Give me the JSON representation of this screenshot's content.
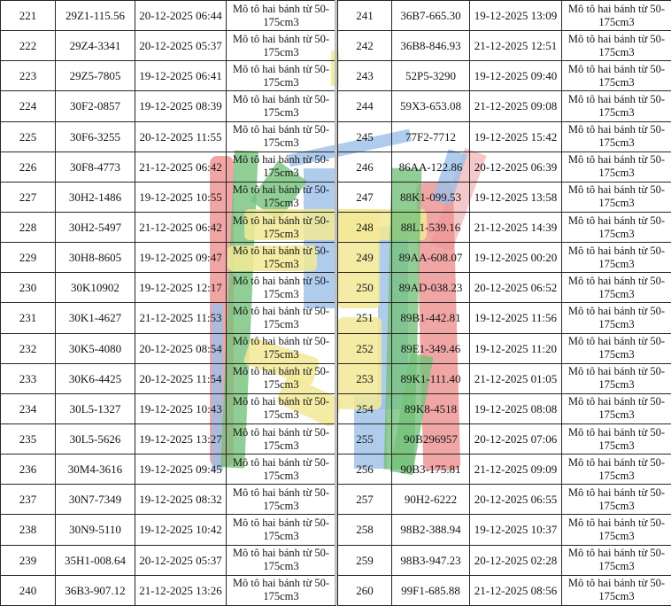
{
  "table": {
    "vehicle_type": "Mô tô hai bánh từ 50-175cm3",
    "vehicle_type_lines": [
      "Mô tô hai bánh từ 50-",
      "175cm3"
    ],
    "left_rows": [
      {
        "no": "221",
        "plate": "29Z1-115.56",
        "datetime": "20-12-2025 06:44"
      },
      {
        "no": "222",
        "plate": "29Z4-3341",
        "datetime": "20-12-2025 05:37"
      },
      {
        "no": "223",
        "plate": "29Z5-7805",
        "datetime": "19-12-2025 06:41"
      },
      {
        "no": "224",
        "plate": "30F2-0857",
        "datetime": "19-12-2025 08:39"
      },
      {
        "no": "225",
        "plate": "30F6-3255",
        "datetime": "20-12-2025 11:55"
      },
      {
        "no": "226",
        "plate": "30F8-4773",
        "datetime": "21-12-2025 06:42"
      },
      {
        "no": "227",
        "plate": "30H2-1486",
        "datetime": "19-12-2025 10:55"
      },
      {
        "no": "228",
        "plate": "30H2-5497",
        "datetime": "21-12-2025 06:42"
      },
      {
        "no": "229",
        "plate": "30H8-8605",
        "datetime": "19-12-2025 09:47"
      },
      {
        "no": "230",
        "plate": "30K10902",
        "datetime": "19-12-2025 12:17"
      },
      {
        "no": "231",
        "plate": "30K1-4627",
        "datetime": "21-12-2025 11:53"
      },
      {
        "no": "232",
        "plate": "30K5-4080",
        "datetime": "20-12-2025 08:54"
      },
      {
        "no": "233",
        "plate": "30K6-4425",
        "datetime": "20-12-2025 11:54"
      },
      {
        "no": "234",
        "plate": "30L5-1327",
        "datetime": "19-12-2025 10:43"
      },
      {
        "no": "235",
        "plate": "30L5-5626",
        "datetime": "19-12-2025 13:27"
      },
      {
        "no": "236",
        "plate": "30M4-3616",
        "datetime": "19-12-2025 09:45"
      },
      {
        "no": "237",
        "plate": "30N7-7349",
        "datetime": "19-12-2025 08:32"
      },
      {
        "no": "238",
        "plate": "30N9-5110",
        "datetime": "19-12-2025 10:42"
      },
      {
        "no": "239",
        "plate": "35H1-008.64",
        "datetime": "20-12-2025 05:37"
      },
      {
        "no": "240",
        "plate": "36B3-907.12",
        "datetime": "21-12-2025 13:26"
      }
    ],
    "right_rows": [
      {
        "no": "241",
        "plate": "36B7-665.30",
        "datetime": "19-12-2025 13:09"
      },
      {
        "no": "242",
        "plate": "36B8-846.93",
        "datetime": "21-12-2025 12:51"
      },
      {
        "no": "243",
        "plate": "52P5-3290",
        "datetime": "19-12-2025 09:40"
      },
      {
        "no": "244",
        "plate": "59X3-653.08",
        "datetime": "21-12-2025 09:08"
      },
      {
        "no": "245",
        "plate": "77F2-7712",
        "datetime": "19-12-2025 15:42"
      },
      {
        "no": "246",
        "plate": "86AA-122.86",
        "datetime": "20-12-2025 06:39"
      },
      {
        "no": "247",
        "plate": "88K1-099.53",
        "datetime": "19-12-2025 13:58"
      },
      {
        "no": "248",
        "plate": "88L1-539.16",
        "datetime": "21-12-2025 14:39"
      },
      {
        "no": "249",
        "plate": "89AA-608.07",
        "datetime": "19-12-2025 00:20"
      },
      {
        "no": "250",
        "plate": "89AD-038.23",
        "datetime": "20-12-2025 06:52"
      },
      {
        "no": "251",
        "plate": "89B1-442.81",
        "datetime": "19-12-2025 11:56"
      },
      {
        "no": "252",
        "plate": "89E1-349.46",
        "datetime": "19-12-2025 11:20"
      },
      {
        "no": "253",
        "plate": "89K1-111.40",
        "datetime": "21-12-2025 01:05"
      },
      {
        "no": "254",
        "plate": "89K8-4518",
        "datetime": "19-12-2025 08:08"
      },
      {
        "no": "255",
        "plate": "90B296957",
        "datetime": "20-12-2025 07:06"
      },
      {
        "no": "256",
        "plate": "90B3-175.81",
        "datetime": "21-12-2025 09:09"
      },
      {
        "no": "257",
        "plate": "90H2-6222",
        "datetime": "20-12-2025 06:55"
      },
      {
        "no": "258",
        "plate": "98B2-388.94",
        "datetime": "19-12-2025 10:37"
      },
      {
        "no": "259",
        "plate": "98B3-947.23",
        "datetime": "20-12-2025 02:28"
      },
      {
        "no": "260",
        "plate": "99F1-685.88",
        "datetime": "21-12-2025 08:56"
      }
    ]
  },
  "watermark": {
    "colors": {
      "red": "#ee9090",
      "pink": "#f3babd",
      "green": "#76c27a",
      "blue": "#9cbfe9",
      "yellow": "#f2e995"
    }
  }
}
